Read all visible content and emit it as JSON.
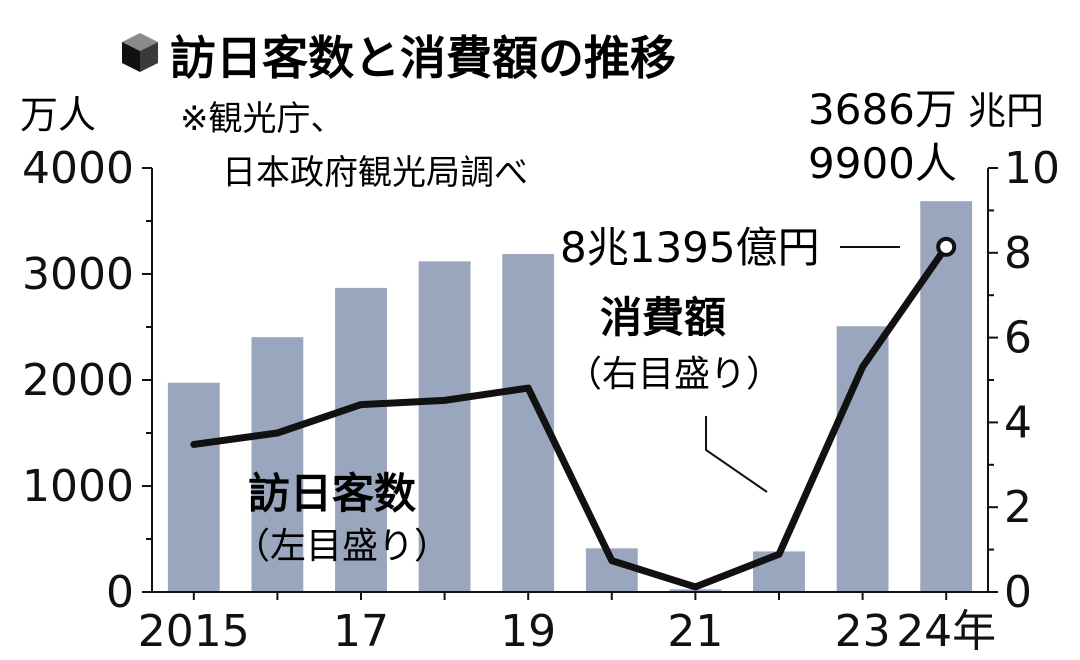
{
  "title": "訪日客数と消費額の推移",
  "source_lines": [
    "※観光庁、",
    "日本政府観光局調べ"
  ],
  "left_unit": "万人",
  "right_unit": "兆円",
  "chart_data": {
    "type": "bar",
    "categories": [
      "2015",
      "2016",
      "2017",
      "2018",
      "2019",
      "2020",
      "2021",
      "2022",
      "2023",
      "2024"
    ],
    "x_tick_labels": [
      "2015",
      "",
      "17",
      "",
      "19",
      "",
      "21",
      "",
      "23",
      "24年"
    ],
    "series": [
      {
        "name": "訪日客数",
        "note": "（左目盛り）",
        "type": "bar",
        "axis": "left",
        "values": [
          1974,
          2404,
          2869,
          3119,
          3188,
          412,
          25,
          383,
          2507,
          3687
        ],
        "color": "#9aa6bd"
      },
      {
        "name": "消費額",
        "note": "（右目盛り）",
        "type": "line",
        "axis": "right",
        "values": [
          3.48,
          3.75,
          4.42,
          4.52,
          4.81,
          0.74,
          0.12,
          0.89,
          5.31,
          8.14
        ],
        "color": "#111111"
      }
    ],
    "left_axis": {
      "min": 0,
      "max": 4000,
      "ticks": [
        0,
        1000,
        2000,
        3000,
        4000
      ]
    },
    "right_axis": {
      "min": 0,
      "max": 10,
      "ticks": [
        0,
        2,
        4,
        6,
        8,
        10
      ]
    },
    "annotations": {
      "visitors_last": [
        "3686万",
        "9900人"
      ],
      "spending_last": "8兆1395億円"
    }
  }
}
